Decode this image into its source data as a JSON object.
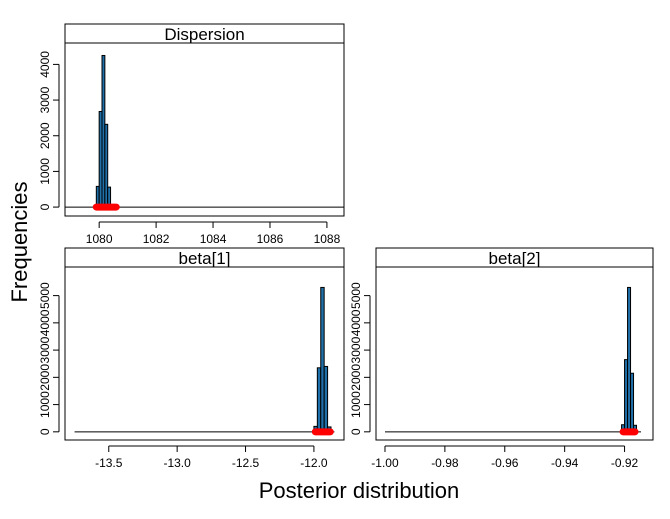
{
  "figure": {
    "ylabel": "Frequencies",
    "xlabel": "Posterior distribution",
    "bar_color": "#1f6fa8",
    "mark_color": "#ff0000"
  },
  "chart_data": [
    {
      "type": "bar",
      "title": "Dispersion",
      "xlim": [
        1078.8,
        1088.6
      ],
      "ylim": [
        -250,
        4600
      ],
      "xticks": [
        "1080",
        "1082",
        "1084",
        "1086",
        "1088"
      ],
      "xtick_values": [
        1080,
        1082,
        1084,
        1086,
        1088
      ],
      "yticks": [
        "0",
        "1000",
        "2000",
        "3000",
        "4000"
      ],
      "ytick_values": [
        0,
        1000,
        2000,
        3000,
        4000
      ],
      "bin_width": 0.1,
      "bins": [
        {
          "x": 1079.85,
          "value": 30
        },
        {
          "x": 1079.95,
          "value": 580
        },
        {
          "x": 1080.05,
          "value": 2680
        },
        {
          "x": 1080.15,
          "value": 4250
        },
        {
          "x": 1080.25,
          "value": 2320
        },
        {
          "x": 1080.35,
          "value": 560
        },
        {
          "x": 1080.45,
          "value": 40
        }
      ],
      "baseline_range": [
        1078.8,
        1088.6
      ],
      "red_band": [
        1079.9,
        1080.6
      ]
    },
    {
      "type": "bar",
      "title": "beta[1]",
      "xlim": [
        -13.82,
        -11.78
      ],
      "ylim": [
        -300,
        6050
      ],
      "xticks": [
        "-13.5",
        "-13.0",
        "-12.5",
        "-12.0"
      ],
      "xtick_values": [
        -13.5,
        -13.0,
        -12.5,
        -12.0
      ],
      "yticks": [
        "0",
        "1000",
        "2000",
        "3000",
        "4000",
        "5000"
      ],
      "ytick_values": [
        0,
        1000,
        2000,
        3000,
        4000,
        5000
      ],
      "bin_width": 0.025,
      "bins": [
        {
          "x": -11.9875,
          "value": 200
        },
        {
          "x": -11.9625,
          "value": 2350
        },
        {
          "x": -11.9375,
          "value": 5300
        },
        {
          "x": -11.9125,
          "value": 2400
        },
        {
          "x": -11.8875,
          "value": 180
        }
      ],
      "baseline_range": [
        -13.75,
        -11.85
      ],
      "red_band": [
        -11.99,
        -11.88
      ]
    },
    {
      "type": "bar",
      "title": "beta[2]",
      "xlim": [
        -1.003,
        -0.9105
      ],
      "ylim": [
        -300,
        6050
      ],
      "xticks": [
        "-1.00",
        "-0.98",
        "-0.96",
        "-0.94",
        "-0.92"
      ],
      "xtick_values": [
        -1.0,
        -0.98,
        -0.96,
        -0.94,
        -0.92
      ],
      "yticks": [
        "0",
        "1000",
        "2000",
        "3000",
        "4000",
        "5000"
      ],
      "ytick_values": [
        0,
        1000,
        2000,
        3000,
        4000,
        5000
      ],
      "bin_width": 0.001,
      "bins": [
        {
          "x": -0.9205,
          "value": 260
        },
        {
          "x": -0.9195,
          "value": 2650
        },
        {
          "x": -0.9185,
          "value": 5300
        },
        {
          "x": -0.9175,
          "value": 2150
        },
        {
          "x": -0.9165,
          "value": 240
        }
      ],
      "baseline_range": [
        -1.0,
        -0.9145
      ],
      "red_band": [
        -0.9205,
        -0.9165
      ]
    }
  ]
}
